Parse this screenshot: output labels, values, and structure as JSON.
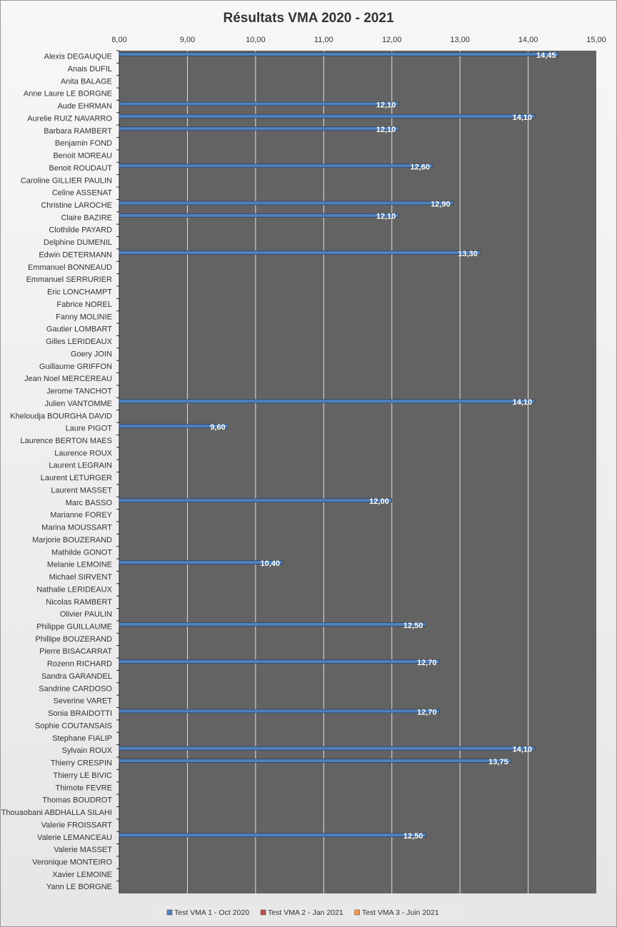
{
  "chart_data": {
    "type": "barh",
    "title": "Résultats VMA 2020 - 2021",
    "categories": [
      "Alexis DEGAUQUE",
      "Anais DUFIL",
      "Anita BALAGE",
      "Anne Laure LE BORGNE",
      "Aude EHRMAN",
      "Aurelie RUIZ NAVARRO",
      "Barbara RAMBERT",
      "Benjamin FOND",
      "Benoit MOREAU",
      "Benoit ROUDAUT",
      "Caroline GILLIER PAULIN",
      "Celine ASSENAT",
      "Christine LAROCHE",
      "Claire BAZIRE",
      "Clothilde PAYARD",
      "Delphine DUMENIL",
      "Edwin DETERMANN",
      "Emmanuel BONNEAUD",
      "Emmanuel SERRURIER",
      "Eric LONCHAMPT",
      "Fabrice NOREL",
      "Fanny MOLINIE",
      "Gautier LOMBART",
      "Gilles LERIDEAUX",
      "Goery JOIN",
      "Guillaume GRIFFON",
      "Jean Noel MERCEREAU",
      "Jerome TANCHOT",
      "Julien VANTOMME",
      "Kheloudja BOURGHA DAVID",
      "Laure PIGOT",
      "Laurence BERTON MAES",
      "Laurence ROUX",
      "Laurent LEGRAIN",
      "Laurent LETURGER",
      "Laurent MASSET",
      "Marc BASSO",
      "Marianne FOREY",
      "Marina MOUSSART",
      "Marjorie BOUZERAND",
      "Mathilde GONOT",
      "Melanie LEMOINE",
      "Michael SIRVENT",
      "Nathalie LERIDEAUX",
      "Nicolas RAMBERT",
      "Olivier PAULIN",
      "Philippe GUILLAUME",
      "Phillipe BOUZERAND",
      "Pierre BISACARRAT",
      "Rozenn RICHARD",
      "Sandra GARANDEL",
      "Sandrine CARDOSO",
      "Severine VARET",
      "Sonia BRAIDOTTI",
      "Sophie COUTANSAIS",
      "Stephane FIALIP",
      "Sylvain ROUX",
      "Thierry CRESPIN",
      "Thierry LE BIVIC",
      "Thimote FEVRE",
      "Thomas BOUDROT",
      "Thouaobani ABDHALLA SILAHI",
      "Valerie FROISSART",
      "Valerie LEMANCEAU",
      "Valerie MASSET",
      "Veronique MONTEIRO",
      "Xavier LEMOINE",
      "Yann LE BORGNE"
    ],
    "series": [
      {
        "name": "Test VMA 1 - Oct 2020",
        "color": "#4f81bd",
        "values": [
          14.45,
          null,
          null,
          null,
          12.1,
          14.1,
          12.1,
          null,
          null,
          12.6,
          null,
          null,
          12.9,
          12.1,
          null,
          null,
          13.3,
          null,
          null,
          null,
          null,
          null,
          null,
          null,
          null,
          null,
          null,
          null,
          14.1,
          null,
          9.6,
          null,
          null,
          null,
          null,
          null,
          12.0,
          null,
          null,
          null,
          null,
          10.4,
          null,
          null,
          null,
          null,
          12.5,
          null,
          null,
          12.7,
          null,
          null,
          null,
          12.7,
          null,
          null,
          14.1,
          13.75,
          null,
          null,
          null,
          null,
          null,
          12.5,
          null,
          null,
          null,
          null
        ],
        "value_labels": [
          "14,45",
          null,
          null,
          null,
          "12,10",
          "14,10",
          "12,10",
          null,
          null,
          "12,60",
          null,
          null,
          "12,90",
          "12,10",
          null,
          null,
          "13,30",
          null,
          null,
          null,
          null,
          null,
          null,
          null,
          null,
          null,
          null,
          null,
          "14,10",
          null,
          "9,60",
          null,
          null,
          null,
          null,
          null,
          "12,00",
          null,
          null,
          null,
          null,
          "10,40",
          null,
          null,
          null,
          null,
          "12,50",
          null,
          null,
          "12,70",
          null,
          null,
          null,
          "12,70",
          null,
          null,
          "14,10",
          "13,75",
          null,
          null,
          null,
          null,
          null,
          "12,50",
          null,
          null,
          null,
          null
        ]
      },
      {
        "name": "Test VMA 2 - Jan 2021",
        "color": "#c0504d",
        "values": [
          null,
          null,
          null,
          null,
          null,
          null,
          null,
          null,
          null,
          null,
          null,
          null,
          null,
          null,
          null,
          null,
          null,
          null,
          null,
          null,
          null,
          null,
          null,
          null,
          null,
          null,
          null,
          null,
          null,
          null,
          null,
          null,
          null,
          null,
          null,
          null,
          null,
          null,
          null,
          null,
          null,
          null,
          null,
          null,
          null,
          null,
          null,
          null,
          null,
          null,
          null,
          null,
          null,
          null,
          null,
          null,
          null,
          null,
          null,
          null,
          null,
          null,
          null,
          null,
          null,
          null,
          null,
          null
        ]
      },
      {
        "name": "Test VMA 3 - Juin 2021",
        "color": "#f79646",
        "values": [
          null,
          null,
          null,
          null,
          null,
          null,
          null,
          null,
          null,
          null,
          null,
          null,
          null,
          null,
          null,
          null,
          null,
          null,
          null,
          null,
          null,
          null,
          null,
          null,
          null,
          null,
          null,
          null,
          null,
          null,
          null,
          null,
          null,
          null,
          null,
          null,
          null,
          null,
          null,
          null,
          null,
          null,
          null,
          null,
          null,
          null,
          null,
          null,
          null,
          null,
          null,
          null,
          null,
          null,
          null,
          null,
          null,
          null,
          null,
          null,
          null,
          null,
          null,
          null,
          null,
          null,
          null,
          null
        ]
      }
    ],
    "xlim": [
      8,
      15
    ],
    "xticks": [
      {
        "value": 8,
        "label": "8,00"
      },
      {
        "value": 9,
        "label": "9,00"
      },
      {
        "value": 10,
        "label": "10,00"
      },
      {
        "value": 11,
        "label": "11,00"
      },
      {
        "value": 12,
        "label": "12,00"
      },
      {
        "value": 13,
        "label": "13,00"
      },
      {
        "value": 14,
        "label": "14,00"
      },
      {
        "value": 15,
        "label": "15,00"
      }
    ],
    "grid": true,
    "legend": "bottom"
  }
}
